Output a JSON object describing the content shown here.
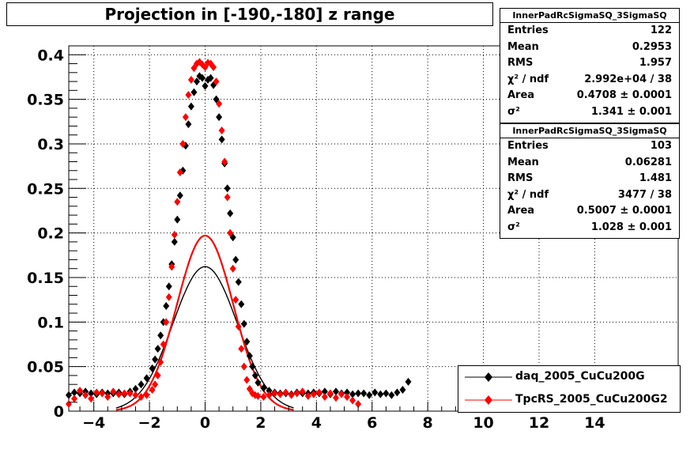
{
  "title": "Projection in [-190,-180] z range",
  "colors": {
    "series1": "#000000",
    "series2": "#ff0000",
    "grid": "#000000"
  },
  "stats_boxes": [
    {
      "name": "InnerPadRcSigmaSQ_3SigmaSQ",
      "rows": [
        {
          "label": "Entries",
          "value": "122"
        },
        {
          "label": "Mean",
          "value": "0.2953"
        },
        {
          "label": "RMS",
          "value": "1.957"
        },
        {
          "label": "χ² / ndf",
          "value": "2.992e+04 / 38"
        },
        {
          "label": "Area",
          "value": "0.4708 ± 0.0001"
        },
        {
          "label": "σ²",
          "value": "1.341 ± 0.001"
        }
      ]
    },
    {
      "name": "InnerPadRcSigmaSQ_3SigmaSQ",
      "rows": [
        {
          "label": "Entries",
          "value": "103"
        },
        {
          "label": "Mean",
          "value": "0.06281"
        },
        {
          "label": "RMS",
          "value": "1.481"
        },
        {
          "label": "χ² / ndf",
          "value": "3477 / 38"
        },
        {
          "label": "Area",
          "value": "0.5007 ± 0.0001"
        },
        {
          "label": "σ²",
          "value": "1.028 ± 0.001"
        }
      ]
    }
  ],
  "legend": {
    "entries": [
      {
        "label": "daq_2005_CuCu200G",
        "color": "#000000"
      },
      {
        "label": "TpcRS_2005_CuCu200G2",
        "color": "#ff0000"
      }
    ]
  },
  "chart_data": {
    "type": "scatter",
    "title": "Projection in [-190,-180] z range",
    "xlim": [
      -4.9,
      17
    ],
    "ylim": [
      0,
      0.41
    ],
    "x_ticks": [
      -4,
      -2,
      0,
      2,
      4,
      6,
      8,
      10,
      12,
      14
    ],
    "y_ticks": [
      0,
      0.05,
      0.1,
      0.15,
      0.2,
      0.25,
      0.3,
      0.35,
      0.4
    ],
    "y_tick_labels": [
      "0",
      "0.05",
      "0.1",
      "0.15",
      "0.2",
      "0.25",
      "0.3",
      "0.35",
      "0.4"
    ],
    "grid": true,
    "legend_position": "bottom-right",
    "series": [
      {
        "name": "daq_2005_CuCu200G",
        "color": "#000000",
        "marker": "diamond",
        "x": [
          -4.9,
          -4.7,
          -4.5,
          -4.3,
          -4.1,
          -3.9,
          -3.7,
          -3.5,
          -3.3,
          -3.1,
          -2.9,
          -2.7,
          -2.5,
          -2.3,
          -2.1,
          -1.9,
          -1.8,
          -1.7,
          -1.6,
          -1.5,
          -1.4,
          -1.3,
          -1.2,
          -1.1,
          -1.0,
          -0.9,
          -0.8,
          -0.7,
          -0.6,
          -0.5,
          -0.4,
          -0.3,
          -0.2,
          -0.1,
          0.0,
          0.1,
          0.2,
          0.3,
          0.4,
          0.5,
          0.6,
          0.7,
          0.8,
          0.9,
          1.0,
          1.1,
          1.2,
          1.3,
          1.4,
          1.5,
          1.6,
          1.7,
          1.8,
          1.9,
          2.1,
          2.3,
          2.5,
          2.7,
          2.9,
          3.1,
          3.3,
          3.5,
          3.7,
          3.9,
          4.1,
          4.3,
          4.5,
          4.7,
          4.9,
          5.1,
          5.3,
          5.5,
          5.7,
          5.9,
          6.1,
          6.3,
          6.5,
          6.7,
          6.9,
          7.1,
          7.3
        ],
        "y": [
          0.018,
          0.021,
          0.02,
          0.022,
          0.02,
          0.019,
          0.021,
          0.02,
          0.02,
          0.021,
          0.019,
          0.022,
          0.025,
          0.03,
          0.037,
          0.048,
          0.058,
          0.07,
          0.085,
          0.1,
          0.118,
          0.14,
          0.165,
          0.19,
          0.215,
          0.242,
          0.27,
          0.298,
          0.322,
          0.342,
          0.358,
          0.37,
          0.376,
          0.374,
          0.365,
          0.372,
          0.374,
          0.366,
          0.35,
          0.33,
          0.305,
          0.278,
          0.25,
          0.222,
          0.195,
          0.17,
          0.145,
          0.12,
          0.098,
          0.078,
          0.062,
          0.05,
          0.04,
          0.032,
          0.026,
          0.023,
          0.021,
          0.02,
          0.02,
          0.019,
          0.021,
          0.02,
          0.02,
          0.021,
          0.02,
          0.022,
          0.019,
          0.022,
          0.02,
          0.021,
          0.019,
          0.02,
          0.02,
          0.018,
          0.021,
          0.019,
          0.02,
          0.018,
          0.021,
          0.024,
          0.033
        ]
      },
      {
        "name": "TpcRS_2005_CuCu200G2",
        "color": "#ff0000",
        "marker": "diamond",
        "x": [
          -4.9,
          -4.7,
          -4.5,
          -4.3,
          -4.1,
          -3.9,
          -3.7,
          -3.5,
          -3.3,
          -3.1,
          -2.9,
          -2.7,
          -2.5,
          -2.3,
          -2.1,
          -1.9,
          -1.8,
          -1.7,
          -1.6,
          -1.5,
          -1.4,
          -1.3,
          -1.2,
          -1.1,
          -1.0,
          -0.9,
          -0.8,
          -0.7,
          -0.6,
          -0.5,
          -0.4,
          -0.3,
          -0.2,
          -0.1,
          0.0,
          0.1,
          0.2,
          0.3,
          0.4,
          0.5,
          0.6,
          0.7,
          0.8,
          0.9,
          1.0,
          1.1,
          1.2,
          1.3,
          1.4,
          1.5,
          1.6,
          1.7,
          1.8,
          1.9,
          2.1,
          2.3,
          2.5,
          2.7,
          2.9,
          3.1,
          3.3,
          3.5,
          3.7,
          3.9,
          4.1,
          4.3,
          4.5,
          4.7,
          4.9,
          5.1,
          5.3,
          5.5
        ],
        "y": [
          0.008,
          0.014,
          0.023,
          0.018,
          0.014,
          0.021,
          0.02,
          0.016,
          0.022,
          0.019,
          0.02,
          0.02,
          0.018,
          0.016,
          0.018,
          0.024,
          0.03,
          0.04,
          0.055,
          0.075,
          0.1,
          0.128,
          0.162,
          0.198,
          0.235,
          0.268,
          0.3,
          0.33,
          0.355,
          0.372,
          0.385,
          0.39,
          0.392,
          0.389,
          0.386,
          0.391,
          0.39,
          0.386,
          0.37,
          0.345,
          0.315,
          0.28,
          0.24,
          0.2,
          0.16,
          0.125,
          0.095,
          0.07,
          0.05,
          0.035,
          0.025,
          0.02,
          0.018,
          0.017,
          0.016,
          0.018,
          0.02,
          0.019,
          0.021,
          0.018,
          0.02,
          0.022,
          0.017,
          0.019,
          0.021,
          0.016,
          0.02,
          0.015,
          0.019,
          0.016,
          0.012,
          0.008
        ]
      }
    ],
    "fits": [
      {
        "series": "daq_2005_CuCu200G",
        "color": "#000000",
        "area": 0.4708,
        "sigma2": 1.341
      },
      {
        "series": "TpcRS_2005_CuCu200G2",
        "color": "#ff0000",
        "area": 0.5007,
        "sigma2": 1.028
      }
    ]
  }
}
